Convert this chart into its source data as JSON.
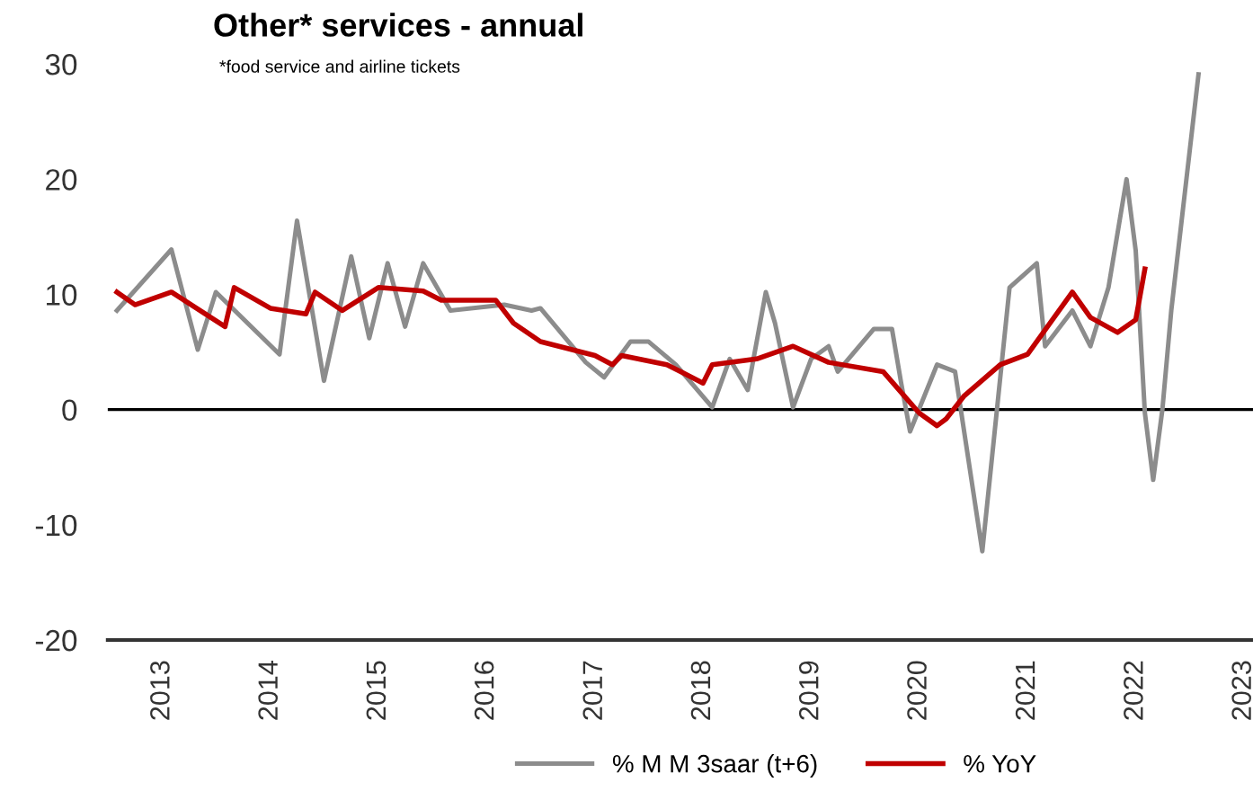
{
  "chart_data": {
    "type": "line",
    "title": "Other* services - annual",
    "annotations": [
      "*food service and airline tickets"
    ],
    "xlim": [
      "2012-07",
      "2023-02"
    ],
    "ylim": [
      -20,
      30
    ],
    "yticks": [
      -20,
      -10,
      0,
      10,
      20,
      30
    ],
    "xticks": [
      {
        "value": "2013",
        "label": "2013"
      },
      {
        "value": "2014",
        "label": "2014"
      },
      {
        "value": "2015",
        "label": "2015"
      },
      {
        "value": "2016",
        "label": "2016"
      },
      {
        "value": "2017",
        "label": "2017"
      },
      {
        "value": "2018",
        "label": "2018"
      },
      {
        "value": "2019",
        "label": "2019"
      },
      {
        "value": "2020",
        "label": "2020"
      },
      {
        "value": "2021",
        "label": "2021"
      },
      {
        "value": "2022",
        "label": "2022"
      },
      {
        "value": "2023",
        "label": "2023"
      }
    ],
    "grid": false,
    "legend": "bottom",
    "line_style": "solid",
    "marker": "none",
    "ref_lines": [
      {
        "axis": "y",
        "value": 0,
        "color": "#000000"
      }
    ],
    "series": [
      {
        "name": "% M M 3saar (t+6)",
        "color": "#8c8c8c",
        "x": [
          "2012-08",
          "2013-02",
          "2013-05",
          "2013-07",
          "2014-02",
          "2014-04",
          "2014-07",
          "2014-10",
          "2014-12",
          "2015-02",
          "2015-04",
          "2015-06",
          "2015-09",
          "2016-03",
          "2016-06",
          "2016-07",
          "2016-12",
          "2017-02",
          "2017-05",
          "2017-07",
          "2017-10",
          "2018-02",
          "2018-04",
          "2018-06",
          "2018-08",
          "2018-09",
          "2018-11",
          "2019-01",
          "2019-03",
          "2019-04",
          "2019-08",
          "2019-10",
          "2019-11",
          "2019-12",
          "2020-03",
          "2020-05",
          "2020-08",
          "2020-11",
          "2021-02",
          "2021-03",
          "2021-06",
          "2021-08",
          "2021-10",
          "2021-12",
          "2022-01",
          "2022-02",
          "2022-03",
          "2022-04",
          "2022-05",
          "2022-08"
        ],
        "values": [
          8.6,
          13.9,
          5.2,
          10.2,
          4.8,
          16.4,
          2.5,
          13.3,
          6.2,
          12.7,
          7.2,
          12.7,
          8.6,
          9.1,
          8.6,
          8.8,
          4.1,
          2.8,
          5.9,
          5.9,
          3.9,
          0.2,
          4.4,
          1.7,
          10.2,
          7.5,
          0.2,
          4.4,
          5.5,
          3.3,
          7.0,
          7.0,
          2.3,
          -1.9,
          3.9,
          3.3,
          -12.3,
          10.6,
          12.7,
          5.5,
          8.6,
          5.5,
          10.6,
          20,
          13.8,
          -0.3,
          -6.1,
          0,
          8.6,
          29.1
        ]
      },
      {
        "name": "% YoY",
        "color": "#c00000",
        "x": [
          "2012-08",
          "2012-10",
          "2013-02",
          "2013-08",
          "2013-09",
          "2014-01",
          "2014-05",
          "2014-06",
          "2014-09",
          "2015-01",
          "2015-06",
          "2015-08",
          "2016-02",
          "2016-04",
          "2016-07",
          "2017-01",
          "2017-03",
          "2017-04",
          "2017-09",
          "2018-01",
          "2018-02",
          "2018-07",
          "2018-11",
          "2019-03",
          "2019-09",
          "2020-01",
          "2020-03",
          "2020-04",
          "2020-06",
          "2020-10",
          "2021-01",
          "2021-06",
          "2021-08",
          "2021-11",
          "2022-01",
          "2022-02"
        ],
        "values": [
          10.2,
          9.1,
          10.2,
          7.2,
          10.6,
          8.8,
          8.3,
          10.2,
          8.6,
          10.6,
          10.3,
          9.5,
          9.5,
          7.5,
          5.9,
          4.7,
          3.9,
          4.7,
          3.9,
          2.3,
          3.9,
          4.4,
          5.5,
          4.1,
          3.3,
          -0.3,
          -1.4,
          -0.8,
          1.2,
          3.9,
          4.8,
          10.2,
          8.0,
          6.7,
          7.8,
          12.2
        ]
      }
    ]
  }
}
